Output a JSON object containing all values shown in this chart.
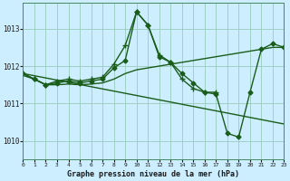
{
  "bg_color": "#cceeff",
  "grid_color": "#99ccbb",
  "line_color": "#1a5c1a",
  "title": "Graphe pression niveau de la mer (hPa)",
  "xlim": [
    0,
    23
  ],
  "ylim": [
    1009.5,
    1013.7
  ],
  "yticks": [
    1010,
    1011,
    1012,
    1013
  ],
  "xticks": [
    0,
    1,
    2,
    3,
    4,
    5,
    6,
    7,
    8,
    9,
    10,
    11,
    12,
    13,
    14,
    15,
    16,
    17,
    18,
    19,
    20,
    21,
    22,
    23
  ],
  "series": [
    {
      "marker": "D",
      "markersize": 2.5,
      "lw": 1.0,
      "x": [
        0,
        1,
        2,
        3,
        4,
        5,
        6,
        7,
        8,
        9,
        10,
        11,
        12,
        13,
        14,
        15,
        16,
        17,
        18,
        19,
        20,
        21,
        22,
        23
      ],
      "y": [
        1011.8,
        1011.65,
        1011.5,
        1011.55,
        1011.6,
        1011.55,
        1011.6,
        1011.65,
        1011.95,
        1012.15,
        1013.45,
        1013.1,
        1012.25,
        1012.1,
        1011.8,
        1011.55,
        1011.3,
        1011.25,
        1010.2,
        1010.1,
        1011.3,
        1012.45,
        1012.6,
        1012.5
      ]
    },
    {
      "marker": "+",
      "markersize": 4,
      "lw": 1.0,
      "x": [
        0,
        1,
        2,
        3,
        4,
        5,
        6,
        7,
        8,
        9,
        10,
        11,
        12,
        13,
        14,
        15,
        16,
        17
      ],
      "y": [
        1011.8,
        1011.65,
        1011.5,
        1011.6,
        1011.65,
        1011.6,
        1011.65,
        1011.7,
        1012.05,
        1012.55,
        1013.45,
        1013.1,
        1012.3,
        1012.1,
        1011.65,
        1011.4,
        1011.3,
        1011.3
      ]
    },
    {
      "marker": null,
      "markersize": 0,
      "lw": 1.0,
      "x": [
        0,
        23
      ],
      "y": [
        1011.8,
        1010.45
      ]
    },
    {
      "marker": null,
      "markersize": 0,
      "lw": 1.0,
      "x": [
        0,
        1,
        2,
        3,
        4,
        5,
        6,
        7,
        8,
        9,
        10,
        11,
        12,
        13,
        14,
        15,
        16,
        17,
        18,
        19,
        20,
        21,
        22,
        23
      ],
      "y": [
        1011.75,
        1011.65,
        1011.5,
        1011.5,
        1011.52,
        1011.5,
        1011.52,
        1011.55,
        1011.65,
        1011.8,
        1011.9,
        1011.95,
        1012.0,
        1012.05,
        1012.1,
        1012.15,
        1012.2,
        1012.25,
        1012.3,
        1012.35,
        1012.4,
        1012.45,
        1012.5,
        1012.5
      ]
    }
  ]
}
